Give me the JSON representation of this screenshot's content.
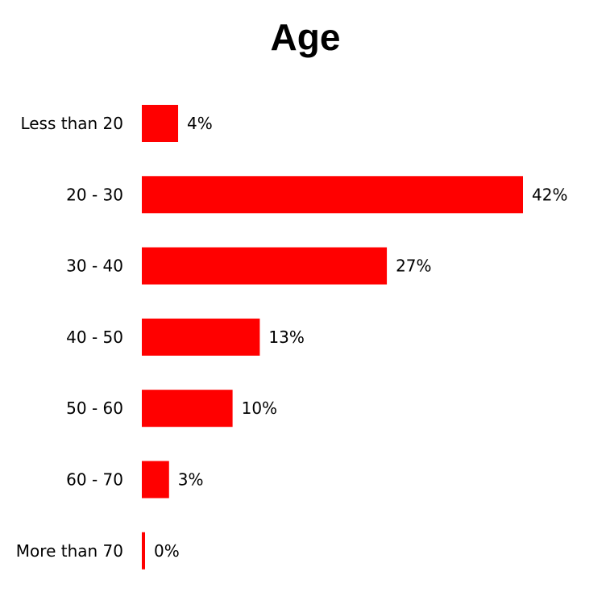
{
  "chart_data": {
    "type": "bar",
    "orientation": "horizontal",
    "title": "Age",
    "categories": [
      "Less than 20",
      "20 - 30",
      "30 - 40",
      "40 - 50",
      "50 - 60",
      "60 - 70",
      "More than 70"
    ],
    "values": [
      4,
      42,
      27,
      13,
      10,
      3,
      0
    ],
    "value_labels": [
      "4%",
      "42%",
      "27%",
      "13%",
      "10%",
      "3%",
      "0%"
    ],
    "unit": "%",
    "xlabel": "",
    "ylabel": "",
    "xlim": [
      0,
      42
    ],
    "grid": false,
    "legend": "none",
    "bar_color": "#ff0000"
  }
}
